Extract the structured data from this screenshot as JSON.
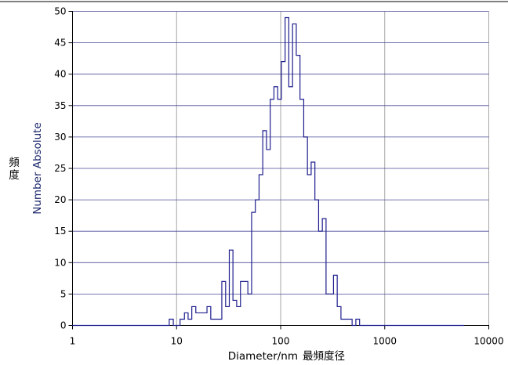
{
  "chart_data": {
    "type": "histogram",
    "x_scale": "log",
    "xlim": [
      1,
      10000
    ],
    "ylim": [
      0,
      50
    ],
    "x_ticks": [
      "1",
      "10",
      "100",
      "1000",
      "10000"
    ],
    "y_ticks": [
      "0",
      "5",
      "10",
      "15",
      "20",
      "25",
      "30",
      "35",
      "40",
      "45",
      "50"
    ],
    "xlabel": "Diameter/nm",
    "xlabel_secondary": "最頻度径",
    "ylabel": "Number Absolute",
    "ylabel_secondary": "頻度",
    "grid": true,
    "line_color": "#1f1f8f",
    "bin_edges": [
      1,
      8.5,
      9.3,
      10.8,
      11.9,
      12.9,
      14.0,
      15.3,
      16.6,
      18.0,
      19.6,
      21.3,
      23.1,
      25.0,
      27.2,
      29.6,
      32.1,
      34.8,
      37.8,
      41.1,
      44.6,
      48.4,
      52.6,
      57.1,
      62.0,
      67.3,
      73.1,
      79.4,
      86.2,
      93.6,
      101.6,
      110.3,
      119.8,
      130.1,
      141.3,
      153.4,
      166.6,
      180.9,
      196.4,
      213.3,
      231.6,
      251.5,
      273.0,
      296.5,
      322.0,
      349.6,
      379.6,
      412.2,
      447.6,
      486.0,
      527.8,
      573.1,
      622.3,
      5800
    ],
    "counts": [
      0,
      1,
      0,
      1,
      2,
      1,
      3,
      2,
      2,
      2,
      3,
      1,
      1,
      1,
      7,
      3,
      12,
      4,
      3,
      7,
      7,
      5,
      18,
      20,
      24,
      31,
      28,
      36,
      38,
      36,
      42,
      49,
      38,
      48,
      43,
      36,
      30,
      24,
      26,
      20,
      15,
      17,
      5,
      5,
      8,
      3,
      1,
      1,
      1,
      0,
      1,
      0,
      0
    ]
  }
}
